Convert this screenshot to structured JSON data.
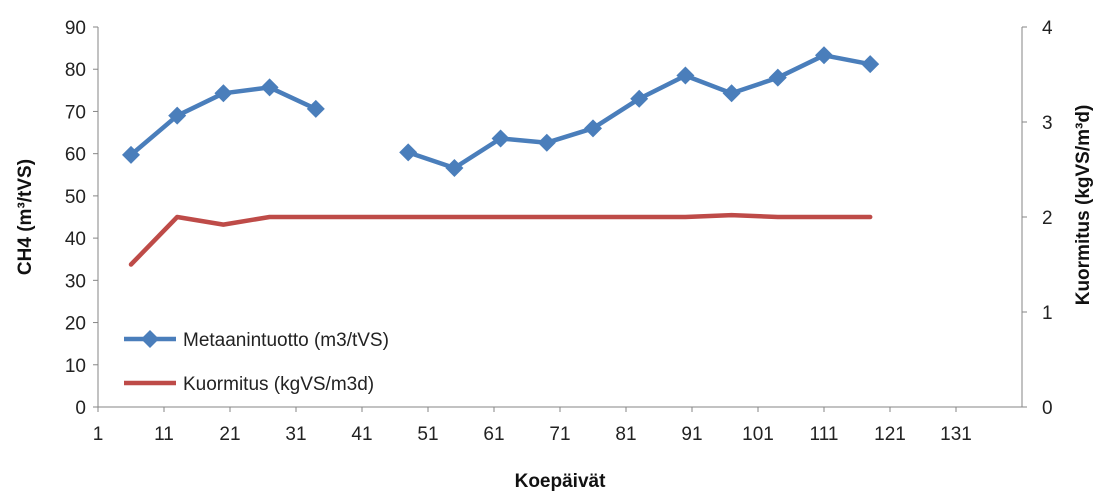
{
  "chart_data": {
    "type": "line",
    "xlabel": "Koepäivät",
    "ylabel_left": "CH4 (m³/tVS)",
    "ylabel_right": "Kuormitus (kgVS/m³d)",
    "xlim": [
      1,
      141
    ],
    "ylim_left": [
      0,
      90
    ],
    "ylim_right": [
      0,
      4
    ],
    "x_ticks": [
      1,
      11,
      21,
      31,
      41,
      51,
      61,
      71,
      81,
      91,
      101,
      111,
      121,
      131
    ],
    "y_ticks_left": [
      0,
      10,
      20,
      30,
      40,
      50,
      60,
      70,
      80,
      90
    ],
    "y_ticks_right": [
      0,
      1,
      2,
      3,
      4
    ],
    "grid": false,
    "legend_position": "bottom-left",
    "series": [
      {
        "name": "Metaanintuotto (m3/tVS)",
        "axis": "left",
        "color": "#4a7ebb",
        "marker": "diamond",
        "segments": [
          [
            [
              6,
              59.7
            ],
            [
              13,
              69.0
            ],
            [
              20,
              74.3
            ],
            [
              27,
              75.7
            ],
            [
              34,
              70.6
            ]
          ],
          [
            [
              48,
              60.3
            ],
            [
              55,
              56.6
            ],
            [
              62,
              63.6
            ],
            [
              69,
              62.6
            ],
            [
              76,
              66.0
            ],
            [
              83,
              73.0
            ],
            [
              90,
              78.5
            ],
            [
              97,
              74.3
            ],
            [
              104,
              78.0
            ],
            [
              111,
              83.3
            ],
            [
              118,
              81.2
            ]
          ]
        ]
      },
      {
        "name": "Kuormitus (kgVS/m3d)",
        "axis": "right",
        "color": "#be4b48",
        "marker": "none",
        "segments": [
          [
            [
              6,
              1.5
            ],
            [
              13,
              2.0
            ],
            [
              20,
              1.92
            ],
            [
              27,
              2.0
            ],
            [
              34,
              2.0
            ],
            [
              41,
              2.0
            ],
            [
              48,
              2.0
            ],
            [
              55,
              2.0
            ],
            [
              62,
              2.0
            ],
            [
              69,
              2.0
            ],
            [
              76,
              2.0
            ],
            [
              83,
              2.0
            ],
            [
              90,
              2.0
            ],
            [
              97,
              2.02
            ],
            [
              104,
              2.0
            ],
            [
              111,
              2.0
            ],
            [
              118,
              2.0
            ]
          ]
        ]
      }
    ]
  }
}
